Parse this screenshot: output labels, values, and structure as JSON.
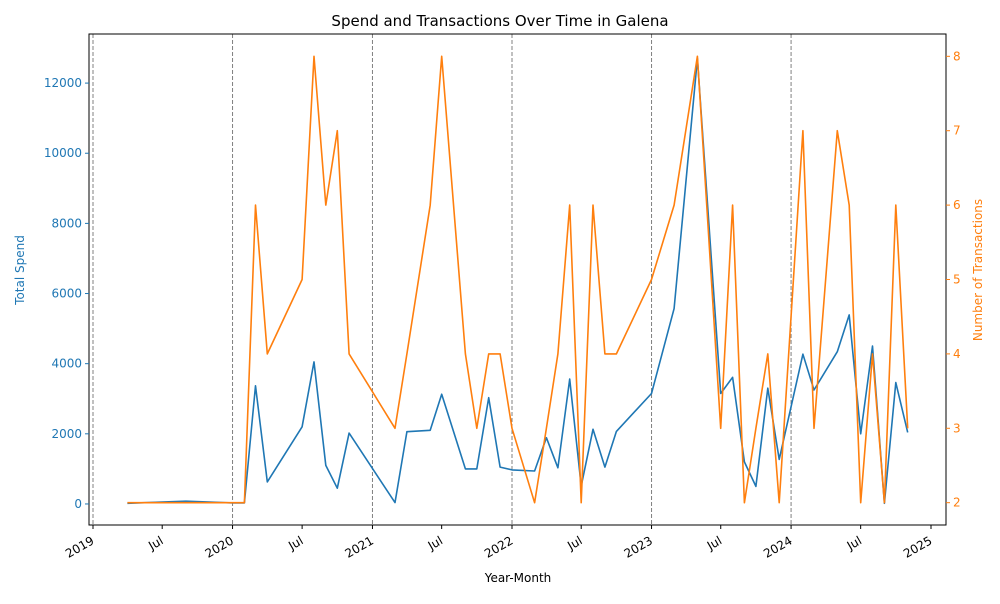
{
  "chart_data": {
    "type": "line",
    "title": "Spend and Transactions Over Time in Galena",
    "xlabel": "Year-Month",
    "ylabel_left": "Total Spend",
    "ylabel_right": "Number of Transactions",
    "x_range": [
      "2019-01-01",
      "2025-01-01"
    ],
    "y_left_range": [
      -600,
      13400
    ],
    "y_right_range": [
      1.7,
      8.3
    ],
    "x_ticks": [
      {
        "date": "2019-01-01",
        "label": "2019"
      },
      {
        "date": "2019-07-01",
        "label": "Jul"
      },
      {
        "date": "2020-01-01",
        "label": "2020"
      },
      {
        "date": "2020-07-01",
        "label": "Jul"
      },
      {
        "date": "2021-01-01",
        "label": "2021"
      },
      {
        "date": "2021-07-01",
        "label": "Jul"
      },
      {
        "date": "2022-01-01",
        "label": "2022"
      },
      {
        "date": "2022-07-01",
        "label": "Jul"
      },
      {
        "date": "2023-01-01",
        "label": "2023"
      },
      {
        "date": "2023-07-01",
        "label": "Jul"
      },
      {
        "date": "2024-01-01",
        "label": "2024"
      },
      {
        "date": "2024-07-01",
        "label": "Jul"
      },
      {
        "date": "2025-01-01",
        "label": "2025"
      }
    ],
    "y_left_ticks": [
      0,
      2000,
      4000,
      6000,
      8000,
      10000,
      12000
    ],
    "y_right_ticks": [
      2,
      3,
      4,
      5,
      6,
      7,
      8
    ],
    "year_lines": [
      "2019-01-01",
      "2020-01-01",
      "2021-01-01",
      "2022-01-01",
      "2023-01-01",
      "2024-01-01"
    ],
    "colors": {
      "spend": "#1f77b4",
      "transactions": "#ff7f0e",
      "year_lines": "#808080"
    },
    "series": [
      {
        "name": "Total Spend",
        "axis": "left",
        "x": [
          "2019-04",
          "2019-09",
          "2020-01",
          "2020-02",
          "2020-03",
          "2020-04",
          "2020-07",
          "2020-08",
          "2020-09",
          "2020-10",
          "2020-11",
          "2021-03",
          "2021-04",
          "2021-06",
          "2021-07",
          "2021-09",
          "2021-10",
          "2021-11",
          "2021-12",
          "2022-01",
          "2022-03",
          "2022-04",
          "2022-05",
          "2022-06",
          "2022-07",
          "2022-08",
          "2022-09",
          "2022-10",
          "2023-01",
          "2023-03",
          "2023-05",
          "2023-07",
          "2023-08",
          "2023-09",
          "2023-10",
          "2023-11",
          "2023-12",
          "2024-02",
          "2024-03",
          "2024-05",
          "2024-06",
          "2024-07",
          "2024-08",
          "2024-09",
          "2024-10",
          "2024-11"
        ],
        "values": [
          20,
          80,
          30,
          30,
          3370,
          630,
          2200,
          4050,
          1100,
          450,
          2020,
          40,
          2060,
          2100,
          3130,
          1000,
          1000,
          3030,
          1050,
          970,
          940,
          1890,
          1030,
          3560,
          510,
          2130,
          1050,
          2070,
          3150,
          5570,
          12700,
          3150,
          3610,
          1200,
          500,
          3300,
          1270,
          4270,
          3250,
          4340,
          5390,
          2000,
          4500,
          20,
          3460,
          2040
        ]
      },
      {
        "name": "Number of Transactions",
        "axis": "right",
        "x": [
          "2019-04",
          "2019-09",
          "2020-01",
          "2020-02",
          "2020-03",
          "2020-04",
          "2020-07",
          "2020-08",
          "2020-09",
          "2020-10",
          "2020-11",
          "2021-03",
          "2021-04",
          "2021-06",
          "2021-07",
          "2021-09",
          "2021-10",
          "2021-11",
          "2021-12",
          "2022-01",
          "2022-03",
          "2022-04",
          "2022-05",
          "2022-06",
          "2022-07",
          "2022-08",
          "2022-09",
          "2022-10",
          "2023-01",
          "2023-03",
          "2023-05",
          "2023-07",
          "2023-08",
          "2023-09",
          "2023-10",
          "2023-11",
          "2023-12",
          "2024-02",
          "2024-03",
          "2024-05",
          "2024-06",
          "2024-07",
          "2024-08",
          "2024-09",
          "2024-10",
          "2024-11"
        ],
        "values": [
          2,
          2,
          2,
          2,
          6,
          4,
          5,
          8,
          6,
          7,
          4,
          3,
          4,
          6,
          8,
          4,
          3,
          4,
          4,
          3,
          2,
          3,
          4,
          6,
          2,
          6,
          4,
          4,
          5,
          6,
          8,
          3,
          6,
          2,
          3,
          4,
          2,
          7,
          3,
          7,
          6,
          2,
          4,
          2,
          6,
          3
        ]
      }
    ]
  }
}
